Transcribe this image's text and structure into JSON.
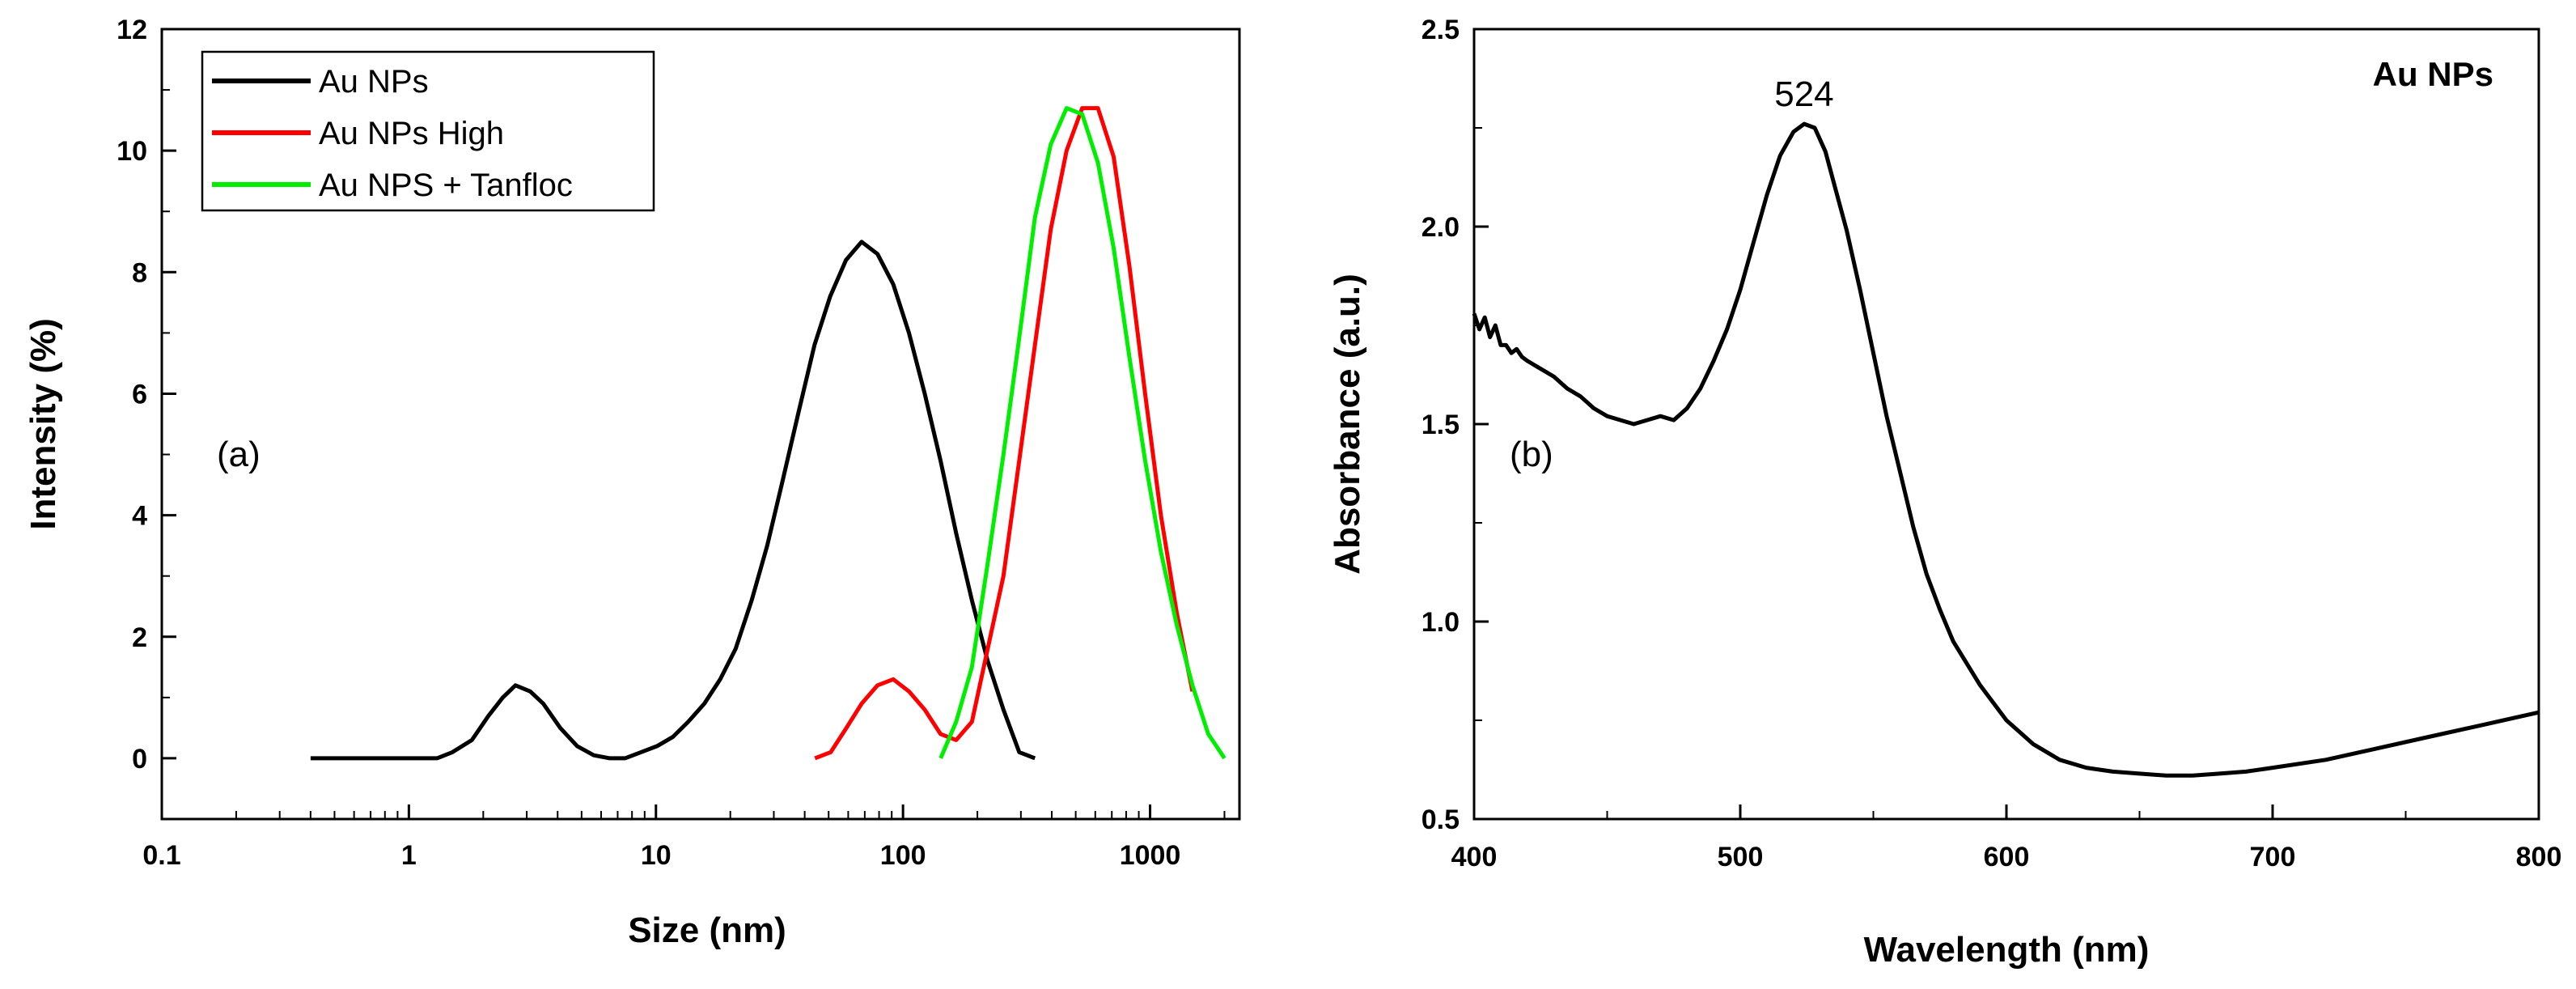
{
  "chart_data": [
    {
      "type": "line",
      "panel_label": "(a)",
      "title": "",
      "xlabel": "Size (nm)",
      "ylabel": "Intensity (%)",
      "xscale": "log",
      "xlim": [
        0.1,
        2300
      ],
      "ylim": [
        -1,
        12
      ],
      "xticks": [
        0.1,
        1,
        10,
        100,
        1000
      ],
      "xtick_labels": [
        "0.1",
        "1",
        "10",
        "100",
        "1000"
      ],
      "yticks": [
        0,
        2,
        4,
        6,
        8,
        10,
        12
      ],
      "ytick_labels": [
        "0",
        "2",
        "4",
        "6",
        "8",
        "10",
        "12"
      ],
      "legend_position": "top-left",
      "series": [
        {
          "name": "Au NPs",
          "color": "#000000",
          "x": [
            0.4,
            0.5,
            0.6,
            0.7,
            0.8,
            0.9,
            1.0,
            1.3,
            1.5,
            1.8,
            2.1,
            2.4,
            2.7,
            3.1,
            3.5,
            4.1,
            4.8,
            5.6,
            6.5,
            7.5,
            8.7,
            10.1,
            11.7,
            13.5,
            15.7,
            18.2,
            21,
            24.4,
            28.2,
            32.7,
            37.8,
            43.8,
            50.7,
            58.8,
            68,
            78.8,
            91.3,
            105.7,
            122.4,
            141.8,
            164.2,
            190.1,
            220.2,
            255,
            295.3,
            342
          ],
          "y": [
            0,
            0,
            0,
            0,
            0,
            0,
            0,
            0,
            0.1,
            0.3,
            0.7,
            1.0,
            1.2,
            1.1,
            0.9,
            0.5,
            0.2,
            0.05,
            0,
            0,
            0.1,
            0.2,
            0.35,
            0.6,
            0.9,
            1.3,
            1.8,
            2.6,
            3.5,
            4.6,
            5.7,
            6.8,
            7.6,
            8.2,
            8.5,
            8.3,
            7.8,
            7.0,
            6.0,
            4.9,
            3.7,
            2.6,
            1.6,
            0.8,
            0.1,
            0
          ]
        },
        {
          "name": "Au NPs High",
          "color": "#ff0000",
          "x": [
            44,
            51,
            59,
            68,
            78.8,
            91.3,
            105.7,
            122.4,
            141.8,
            164.2,
            190.1,
            220.2,
            255,
            295.3,
            342,
            396,
            459,
            531,
            615,
            712,
            825,
            955,
            1106,
            1281,
            1484
          ],
          "y": [
            0,
            0.1,
            0.5,
            0.9,
            1.2,
            1.3,
            1.1,
            0.8,
            0.4,
            0.3,
            0.6,
            1.8,
            3.0,
            4.9,
            6.8,
            8.7,
            10.0,
            10.7,
            10.7,
            9.9,
            8.1,
            6.0,
            4.0,
            2.4,
            1.1
          ]
        },
        {
          "name": "Au NPS + Tanfloc",
          "color": "#00ee00",
          "x": [
            142,
            164,
            190,
            220,
            255,
            295,
            342,
            396,
            459,
            531,
            615,
            712,
            825,
            955,
            1106,
            1281,
            1484,
            1719,
            2000
          ],
          "y": [
            0,
            0.6,
            1.5,
            3.2,
            5.0,
            6.9,
            8.9,
            10.1,
            10.7,
            10.6,
            9.8,
            8.4,
            6.6,
            4.9,
            3.4,
            2.2,
            1.2,
            0.4,
            0
          ]
        }
      ]
    },
    {
      "type": "line",
      "panel_label": "(b)",
      "title": "Au NPs",
      "xlabel": "Wavelength (nm)",
      "ylabel": "Absorbance (a.u.)",
      "xlim": [
        400,
        800
      ],
      "ylim": [
        0.5,
        2.5
      ],
      "xticks": [
        400,
        500,
        600,
        700,
        800
      ],
      "xtick_labels": [
        "400",
        "500",
        "600",
        "700",
        "800"
      ],
      "yticks": [
        0.5,
        1.0,
        1.5,
        2.0,
        2.5
      ],
      "ytick_labels": [
        "0.5",
        "1.0",
        "1.5",
        "2.0",
        "2.5"
      ],
      "annotations": [
        {
          "text": "524",
          "x": 524,
          "y": 2.26
        }
      ],
      "series": [
        {
          "name": "Au NPs",
          "color": "#000000",
          "x": [
            400,
            402,
            404,
            406,
            408,
            410,
            412,
            414,
            416,
            418,
            420,
            425,
            430,
            435,
            440,
            445,
            450,
            455,
            460,
            465,
            470,
            475,
            480,
            485,
            490,
            495,
            500,
            505,
            510,
            515,
            520,
            524,
            528,
            532,
            536,
            540,
            545,
            550,
            555,
            560,
            565,
            570,
            575,
            580,
            590,
            600,
            610,
            620,
            630,
            640,
            650,
            660,
            670,
            680,
            690,
            700,
            720,
            740,
            760,
            780,
            800
          ],
          "y": [
            1.78,
            1.74,
            1.77,
            1.72,
            1.75,
            1.7,
            1.7,
            1.68,
            1.69,
            1.67,
            1.66,
            1.64,
            1.62,
            1.59,
            1.57,
            1.54,
            1.52,
            1.51,
            1.5,
            1.51,
            1.52,
            1.51,
            1.54,
            1.59,
            1.66,
            1.74,
            1.84,
            1.96,
            2.08,
            2.18,
            2.24,
            2.26,
            2.25,
            2.19,
            2.09,
            1.99,
            1.84,
            1.68,
            1.52,
            1.38,
            1.24,
            1.12,
            1.03,
            0.95,
            0.84,
            0.75,
            0.69,
            0.65,
            0.63,
            0.62,
            0.615,
            0.61,
            0.61,
            0.615,
            0.62,
            0.63,
            0.65,
            0.68,
            0.71,
            0.74,
            0.77
          ]
        }
      ]
    }
  ]
}
